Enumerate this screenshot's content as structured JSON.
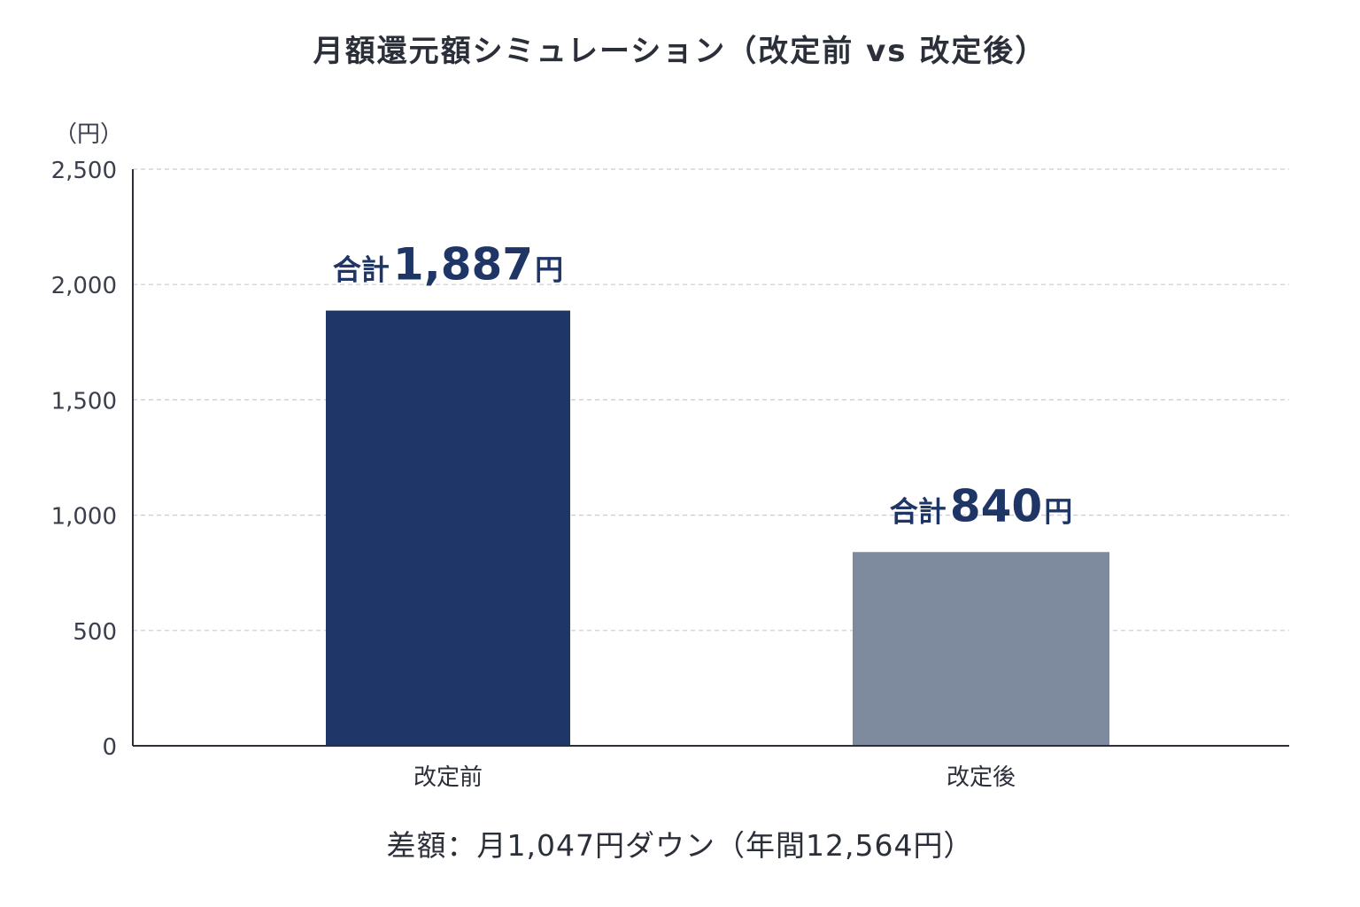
{
  "chart_data": {
    "type": "bar",
    "title": "月額還元額シミュレーション（改定前 vs 改定後）",
    "unit_label": "（円）",
    "categories": [
      "改定前",
      "改定後"
    ],
    "values": [
      1887,
      840
    ],
    "ylim": [
      0,
      2500
    ],
    "yticks": [
      0,
      500,
      1000,
      1500,
      2000,
      2500
    ],
    "ytick_labels": [
      "0",
      "500",
      "1,000",
      "1,500",
      "2,000",
      "2,500"
    ],
    "grid": true,
    "bar_colors": [
      "#1e3768",
      "#7e8a9e"
    ],
    "data_labels": [
      {
        "prefix": "合計",
        "value": "1,887",
        "suffix": "円"
      },
      {
        "prefix": "合計",
        "value": "840",
        "suffix": "円"
      }
    ],
    "footer_note": "差額：月1,047円ダウン（年間12,564円）"
  }
}
